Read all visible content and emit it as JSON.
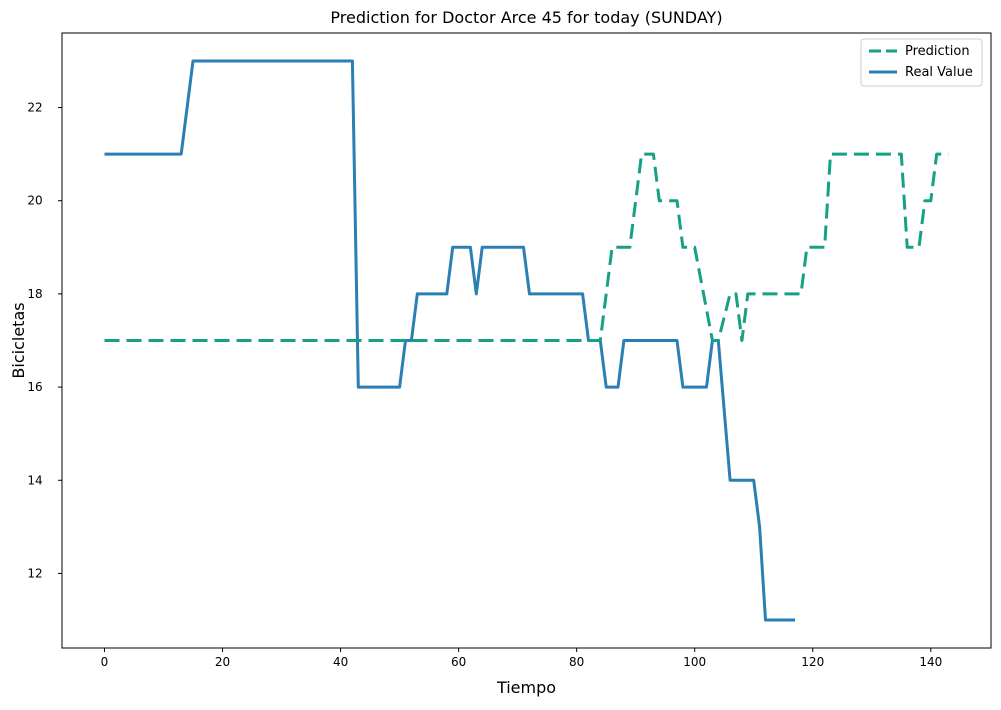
{
  "chart_data": {
    "type": "line",
    "title": "Prediction for Doctor Arce 45 for today (SUNDAY)",
    "xlabel": "Tiempo",
    "ylabel": "Bicicletas",
    "xlim": [
      -7.2,
      150.2
    ],
    "ylim": [
      10.4,
      23.6
    ],
    "xticks": [
      0,
      20,
      40,
      60,
      80,
      100,
      120,
      140
    ],
    "yticks": [
      12,
      14,
      16,
      18,
      20,
      22
    ],
    "grid": false,
    "legend": {
      "position": "top-right"
    },
    "series": [
      {
        "name": "Prediction",
        "color": "#16a085",
        "dash": "dashed",
        "points": [
          [
            0,
            17
          ],
          [
            84,
            17
          ],
          [
            86,
            19
          ],
          [
            89,
            19
          ],
          [
            91,
            21
          ],
          [
            93,
            21
          ],
          [
            94,
            20
          ],
          [
            97,
            20
          ],
          [
            98,
            19
          ],
          [
            100,
            19
          ],
          [
            103,
            17
          ],
          [
            104,
            17
          ],
          [
            106,
            18
          ],
          [
            107,
            18
          ],
          [
            108,
            17
          ],
          [
            109,
            18
          ],
          [
            118,
            18
          ],
          [
            119,
            19
          ],
          [
            122,
            19
          ],
          [
            123,
            21
          ],
          [
            135,
            21
          ],
          [
            136,
            19
          ],
          [
            138,
            19
          ],
          [
            139,
            20
          ],
          [
            140,
            20
          ],
          [
            141,
            21
          ],
          [
            143,
            21
          ]
        ]
      },
      {
        "name": "Real Value",
        "color": "#2a7fb4",
        "dash": "solid",
        "points": [
          [
            0,
            21
          ],
          [
            13,
            21
          ],
          [
            15,
            23
          ],
          [
            42,
            23
          ],
          [
            43,
            16
          ],
          [
            50,
            16
          ],
          [
            51,
            17
          ],
          [
            52,
            17
          ],
          [
            53,
            18
          ],
          [
            58,
            18
          ],
          [
            59,
            19
          ],
          [
            62,
            19
          ],
          [
            63,
            18
          ],
          [
            64,
            19
          ],
          [
            71,
            19
          ],
          [
            72,
            18
          ],
          [
            81,
            18
          ],
          [
            82,
            17
          ],
          [
            84,
            17
          ],
          [
            85,
            16
          ],
          [
            87,
            16
          ],
          [
            88,
            17
          ],
          [
            97,
            17
          ],
          [
            98,
            16
          ],
          [
            102,
            16
          ],
          [
            103,
            17
          ],
          [
            104,
            17
          ],
          [
            106,
            14
          ],
          [
            110,
            14
          ],
          [
            111,
            13
          ],
          [
            112,
            11
          ],
          [
            117,
            11
          ]
        ]
      }
    ]
  }
}
